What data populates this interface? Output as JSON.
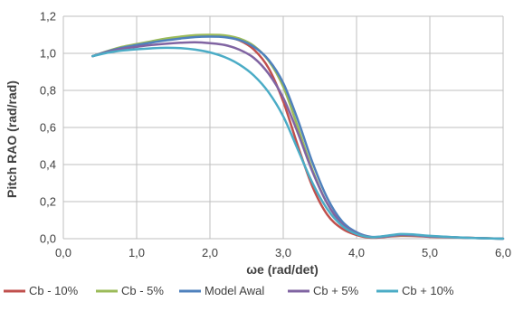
{
  "chart_data": {
    "type": "line",
    "title": "",
    "xlabel": "ωe (rad/det)",
    "ylabel": "Pitch RAO (rad/rad)",
    "xlim": [
      0,
      6
    ],
    "ylim": [
      0,
      1.2
    ],
    "x_ticks": [
      0,
      1,
      2,
      3,
      4,
      5,
      6
    ],
    "x_tick_labels": [
      "0,0",
      "1,0",
      "2,0",
      "3,0",
      "4,0",
      "5,0",
      "6,0"
    ],
    "y_ticks": [
      0,
      0.2,
      0.4,
      0.6,
      0.8,
      1.0,
      1.2
    ],
    "y_tick_labels": [
      "0,0",
      "0,2",
      "0,4",
      "0,6",
      "0,8",
      "1,0",
      "1,2"
    ],
    "grid": true,
    "legend_position": "bottom",
    "series": [
      {
        "name": "Cb - 10%",
        "color": "#c0504d",
        "points": [
          [
            0.4,
            0.985
          ],
          [
            0.6,
            1.01
          ],
          [
            0.8,
            1.03
          ],
          [
            1.0,
            1.045
          ],
          [
            1.2,
            1.06
          ],
          [
            1.4,
            1.075
          ],
          [
            1.6,
            1.085
          ],
          [
            1.8,
            1.092
          ],
          [
            2.0,
            1.095
          ],
          [
            2.2,
            1.09
          ],
          [
            2.4,
            1.07
          ],
          [
            2.6,
            1.02
          ],
          [
            2.8,
            0.92
          ],
          [
            3.0,
            0.74
          ],
          [
            3.2,
            0.5
          ],
          [
            3.4,
            0.28
          ],
          [
            3.6,
            0.13
          ],
          [
            3.8,
            0.055
          ],
          [
            4.0,
            0.02
          ],
          [
            4.2,
            0.005
          ],
          [
            4.4,
            0.01
          ],
          [
            4.6,
            0.015
          ],
          [
            4.8,
            0.014
          ],
          [
            5.0,
            0.01
          ],
          [
            5.5,
            0.005
          ],
          [
            6.0,
            0.0
          ]
        ]
      },
      {
        "name": "Cb - 5%",
        "color": "#9bbb59",
        "points": [
          [
            0.4,
            0.985
          ],
          [
            0.6,
            1.012
          ],
          [
            0.8,
            1.035
          ],
          [
            1.0,
            1.05
          ],
          [
            1.2,
            1.065
          ],
          [
            1.4,
            1.08
          ],
          [
            1.6,
            1.09
          ],
          [
            1.8,
            1.098
          ],
          [
            2.0,
            1.1
          ],
          [
            2.2,
            1.097
          ],
          [
            2.4,
            1.08
          ],
          [
            2.6,
            1.04
          ],
          [
            2.8,
            0.96
          ],
          [
            3.0,
            0.82
          ],
          [
            3.2,
            0.6
          ],
          [
            3.4,
            0.37
          ],
          [
            3.6,
            0.19
          ],
          [
            3.8,
            0.08
          ],
          [
            4.0,
            0.03
          ],
          [
            4.2,
            0.008
          ],
          [
            4.4,
            0.012
          ],
          [
            4.6,
            0.018
          ],
          [
            4.8,
            0.017
          ],
          [
            5.0,
            0.012
          ],
          [
            5.5,
            0.005
          ],
          [
            6.0,
            0.0
          ]
        ]
      },
      {
        "name": "Model Awal",
        "color": "#4f81bd",
        "points": [
          [
            0.4,
            0.985
          ],
          [
            0.6,
            1.01
          ],
          [
            0.8,
            1.03
          ],
          [
            1.0,
            1.045
          ],
          [
            1.2,
            1.058
          ],
          [
            1.4,
            1.07
          ],
          [
            1.6,
            1.08
          ],
          [
            1.8,
            1.088
          ],
          [
            2.0,
            1.09
          ],
          [
            2.2,
            1.087
          ],
          [
            2.4,
            1.072
          ],
          [
            2.6,
            1.035
          ],
          [
            2.8,
            0.965
          ],
          [
            3.0,
            0.84
          ],
          [
            3.2,
            0.64
          ],
          [
            3.4,
            0.41
          ],
          [
            3.6,
            0.22
          ],
          [
            3.8,
            0.095
          ],
          [
            4.0,
            0.035
          ],
          [
            4.2,
            0.01
          ],
          [
            4.4,
            0.014
          ],
          [
            4.6,
            0.022
          ],
          [
            4.8,
            0.02
          ],
          [
            5.0,
            0.014
          ],
          [
            5.5,
            0.005
          ],
          [
            6.0,
            0.0
          ]
        ]
      },
      {
        "name": "Cb + 5%",
        "color": "#8064a2",
        "points": [
          [
            0.4,
            0.985
          ],
          [
            0.6,
            1.008
          ],
          [
            0.8,
            1.025
          ],
          [
            1.0,
            1.035
          ],
          [
            1.2,
            1.045
          ],
          [
            1.4,
            1.052
          ],
          [
            1.6,
            1.057
          ],
          [
            1.8,
            1.06
          ],
          [
            2.0,
            1.055
          ],
          [
            2.2,
            1.045
          ],
          [
            2.4,
            1.02
          ],
          [
            2.6,
            0.975
          ],
          [
            2.8,
            0.89
          ],
          [
            3.0,
            0.76
          ],
          [
            3.2,
            0.57
          ],
          [
            3.4,
            0.36
          ],
          [
            3.6,
            0.19
          ],
          [
            3.8,
            0.08
          ],
          [
            4.0,
            0.028
          ],
          [
            4.2,
            0.008
          ],
          [
            4.4,
            0.012
          ],
          [
            4.6,
            0.02
          ],
          [
            4.8,
            0.018
          ],
          [
            5.0,
            0.012
          ],
          [
            5.5,
            0.005
          ],
          [
            6.0,
            0.0
          ]
        ]
      },
      {
        "name": "Cb + 10%",
        "color": "#4bacc6",
        "points": [
          [
            0.4,
            0.985
          ],
          [
            0.6,
            1.003
          ],
          [
            0.8,
            1.015
          ],
          [
            1.0,
            1.022
          ],
          [
            1.2,
            1.027
          ],
          [
            1.4,
            1.03
          ],
          [
            1.6,
            1.028
          ],
          [
            1.8,
            1.02
          ],
          [
            2.0,
            1.005
          ],
          [
            2.2,
            0.98
          ],
          [
            2.4,
            0.94
          ],
          [
            2.6,
            0.88
          ],
          [
            2.8,
            0.79
          ],
          [
            3.0,
            0.66
          ],
          [
            3.2,
            0.48
          ],
          [
            3.4,
            0.3
          ],
          [
            3.6,
            0.16
          ],
          [
            3.8,
            0.07
          ],
          [
            4.0,
            0.025
          ],
          [
            4.2,
            0.008
          ],
          [
            4.4,
            0.015
          ],
          [
            4.6,
            0.025
          ],
          [
            4.8,
            0.022
          ],
          [
            5.0,
            0.015
          ],
          [
            5.5,
            0.005
          ],
          [
            6.0,
            0.0
          ]
        ]
      }
    ]
  }
}
